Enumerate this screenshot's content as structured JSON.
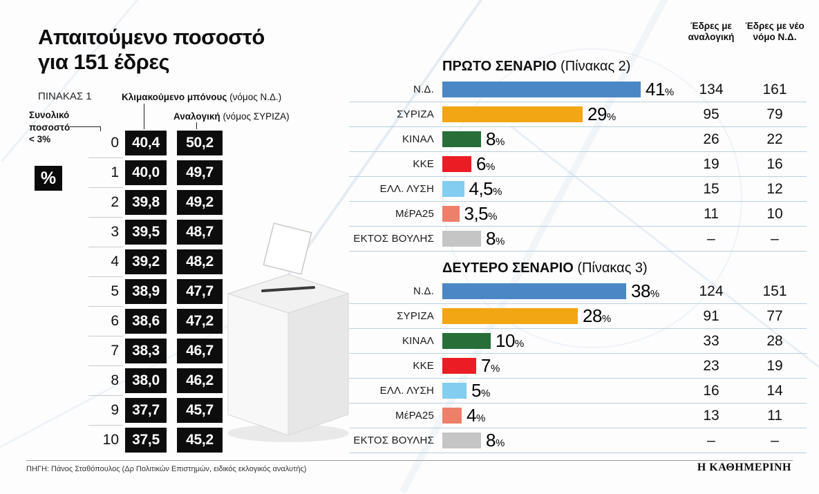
{
  "left": {
    "title_line1": "Απαιτούμενο ποσοστό",
    "title_line2": "για 151 έδρες",
    "table_label": "ΠΙΝΑΚΑΣ 1",
    "col1_label_bold": "Κλιμακούμενο μπόνους",
    "col1_label_rest": " (νόμος Ν.Δ.)",
    "col2_label_bold": "Αναλογική",
    "col2_label_rest": " (νόμος ΣΥΡΙΖΑ)",
    "side_note": "Συνολικό\nποσοστό\n< 3%",
    "percent_badge": "%",
    "rows": [
      {
        "idx": "0",
        "bonus": "40,4",
        "prop": "50,2"
      },
      {
        "idx": "1",
        "bonus": "40,0",
        "prop": "49,7"
      },
      {
        "idx": "2",
        "bonus": "39,8",
        "prop": "49,2"
      },
      {
        "idx": "3",
        "bonus": "39,5",
        "prop": "48,7"
      },
      {
        "idx": "4",
        "bonus": "39,2",
        "prop": "48,2"
      },
      {
        "idx": "5",
        "bonus": "38,9",
        "prop": "47,7"
      },
      {
        "idx": "6",
        "bonus": "38,6",
        "prop": "47,2"
      },
      {
        "idx": "7",
        "bonus": "38,3",
        "prop": "46,7"
      },
      {
        "idx": "8",
        "bonus": "38,0",
        "prop": "46,2"
      },
      {
        "idx": "9",
        "bonus": "37,7",
        "prop": "45,7"
      },
      {
        "idx": "10",
        "bonus": "37,5",
        "prop": "45,2"
      }
    ]
  },
  "right": {
    "col_header_1": "Έδρες με αναλογική",
    "col_header_2": "Έδρες με νέο νόμο Ν.Δ.",
    "scenarios": [
      {
        "title_bold": "ΠΡΩΤΟ ΣΕΝΑΡΙΟ",
        "title_rest": "(Πίνακας 2)",
        "rows": [
          {
            "party": "Ν.Δ.",
            "pct_label": "41",
            "pct": 41,
            "color": "#4b87c5",
            "seats_prop": "134",
            "seats_new": "161"
          },
          {
            "party": "ΣΥΡΙΖΑ",
            "pct_label": "29",
            "pct": 29,
            "color": "#f2a613",
            "seats_prop": "95",
            "seats_new": "79"
          },
          {
            "party": "ΚΙΝΑΛ",
            "pct_label": "8",
            "pct": 8,
            "color": "#276e38",
            "seats_prop": "26",
            "seats_new": "22"
          },
          {
            "party": "ΚΚΕ",
            "pct_label": "6",
            "pct": 6,
            "color": "#ec1c24",
            "seats_prop": "19",
            "seats_new": "16"
          },
          {
            "party": "ΕΛΛ. ΛΥΣΗ",
            "pct_label": "4,5",
            "pct": 4.5,
            "color": "#82cdf0",
            "seats_prop": "15",
            "seats_new": "12"
          },
          {
            "party": "ΜέΡΑ25",
            "pct_label": "3,5",
            "pct": 3.5,
            "color": "#ee7f6a",
            "seats_prop": "11",
            "seats_new": "10"
          },
          {
            "party": "ΕΚΤΟΣ ΒΟΥΛΗΣ",
            "pct_label": "8",
            "pct": 8,
            "color": "#c5c5c5",
            "seats_prop": "–",
            "seats_new": "–"
          }
        ]
      },
      {
        "title_bold": "ΔΕΥΤΕΡΟ ΣΕΝΑΡΙΟ",
        "title_rest": "(Πίνακας 3)",
        "rows": [
          {
            "party": "Ν.Δ.",
            "pct_label": "38",
            "pct": 38,
            "color": "#4b87c5",
            "seats_prop": "124",
            "seats_new": "151"
          },
          {
            "party": "ΣΥΡΙΖΑ",
            "pct_label": "28",
            "pct": 28,
            "color": "#f2a613",
            "seats_prop": "91",
            "seats_new": "77"
          },
          {
            "party": "ΚΙΝΑΛ",
            "pct_label": "10",
            "pct": 10,
            "color": "#276e38",
            "seats_prop": "33",
            "seats_new": "28"
          },
          {
            "party": "ΚΚΕ",
            "pct_label": "7",
            "pct": 7,
            "color": "#ec1c24",
            "seats_prop": "23",
            "seats_new": "19"
          },
          {
            "party": "ΕΛΛ. ΛΥΣΗ",
            "pct_label": "5",
            "pct": 5,
            "color": "#82cdf0",
            "seats_prop": "16",
            "seats_new": "14"
          },
          {
            "party": "ΜέΡΑ25",
            "pct_label": "4",
            "pct": 4,
            "color": "#ee7f6a",
            "seats_prop": "13",
            "seats_new": "11"
          },
          {
            "party": "ΕΚΤΟΣ ΒΟΥΛΗΣ",
            "pct_label": "8",
            "pct": 8,
            "color": "#c5c5c5",
            "seats_prop": "–",
            "seats_new": "–"
          }
        ]
      }
    ]
  },
  "footer": {
    "source": "ΠΗΓΗ: Πάνος Σταθόπουλος (Δρ Πολιτικών Επιστημών, ειδικός εκλογικός αναλυτής)",
    "brand": "Η ΚΑΘΗΜΕΡΙΝΗ"
  },
  "chart_data": [
    {
      "type": "table",
      "title": "ΠΙΝΑΚΑΣ 1 — Απαιτούμενο ποσοστό για 151 έδρες",
      "columns": [
        "Συνολικό ποσοστό < 3%",
        "Κλιμακούμενο μπόνους (νόμος Ν.Δ.)",
        "Αναλογική (νόμος ΣΥΡΙΖΑ)"
      ],
      "rows": [
        [
          0,
          40.4,
          50.2
        ],
        [
          1,
          40.0,
          49.7
        ],
        [
          2,
          39.8,
          49.2
        ],
        [
          3,
          39.5,
          48.7
        ],
        [
          4,
          39.2,
          48.2
        ],
        [
          5,
          38.9,
          47.7
        ],
        [
          6,
          38.6,
          47.2
        ],
        [
          7,
          38.3,
          46.7
        ],
        [
          8,
          38.0,
          46.2
        ],
        [
          9,
          37.7,
          45.7
        ],
        [
          10,
          37.5,
          45.2
        ]
      ]
    },
    {
      "type": "bar",
      "orientation": "horizontal",
      "title": "ΠΡΩΤΟ ΣΕΝΑΡΙΟ (Πίνακας 2)",
      "categories": [
        "Ν.Δ.",
        "ΣΥΡΙΖΑ",
        "ΚΙΝΑΛ",
        "ΚΚΕ",
        "ΕΛΛ. ΛΥΣΗ",
        "ΜέΡΑ25",
        "ΕΚΤΟΣ ΒΟΥΛΗΣ"
      ],
      "series": [
        {
          "name": "Ποσοστό %",
          "values": [
            41,
            29,
            8,
            6,
            4.5,
            3.5,
            8
          ]
        },
        {
          "name": "Έδρες με αναλογική",
          "values": [
            134,
            95,
            26,
            19,
            15,
            11,
            null
          ]
        },
        {
          "name": "Έδρες με νέο νόμο Ν.Δ.",
          "values": [
            161,
            79,
            22,
            16,
            12,
            10,
            null
          ]
        }
      ],
      "colors": [
        "#4b87c5",
        "#f2a613",
        "#276e38",
        "#ec1c24",
        "#82cdf0",
        "#ee7f6a",
        "#c5c5c5"
      ]
    },
    {
      "type": "bar",
      "orientation": "horizontal",
      "title": "ΔΕΥΤΕΡΟ ΣΕΝΑΡΙΟ (Πίνακας 3)",
      "categories": [
        "Ν.Δ.",
        "ΣΥΡΙΖΑ",
        "ΚΙΝΑΛ",
        "ΚΚΕ",
        "ΕΛΛ. ΛΥΣΗ",
        "ΜέΡΑ25",
        "ΕΚΤΟΣ ΒΟΥΛΗΣ"
      ],
      "series": [
        {
          "name": "Ποσοστό %",
          "values": [
            38,
            28,
            10,
            7,
            5,
            4,
            8
          ]
        },
        {
          "name": "Έδρες με αναλογική",
          "values": [
            124,
            91,
            33,
            23,
            16,
            13,
            null
          ]
        },
        {
          "name": "Έδρες με νέο νόμο Ν.Δ.",
          "values": [
            151,
            77,
            28,
            19,
            14,
            11,
            null
          ]
        }
      ],
      "colors": [
        "#4b87c5",
        "#f2a613",
        "#276e38",
        "#ec1c24",
        "#82cdf0",
        "#ee7f6a",
        "#c5c5c5"
      ]
    }
  ]
}
